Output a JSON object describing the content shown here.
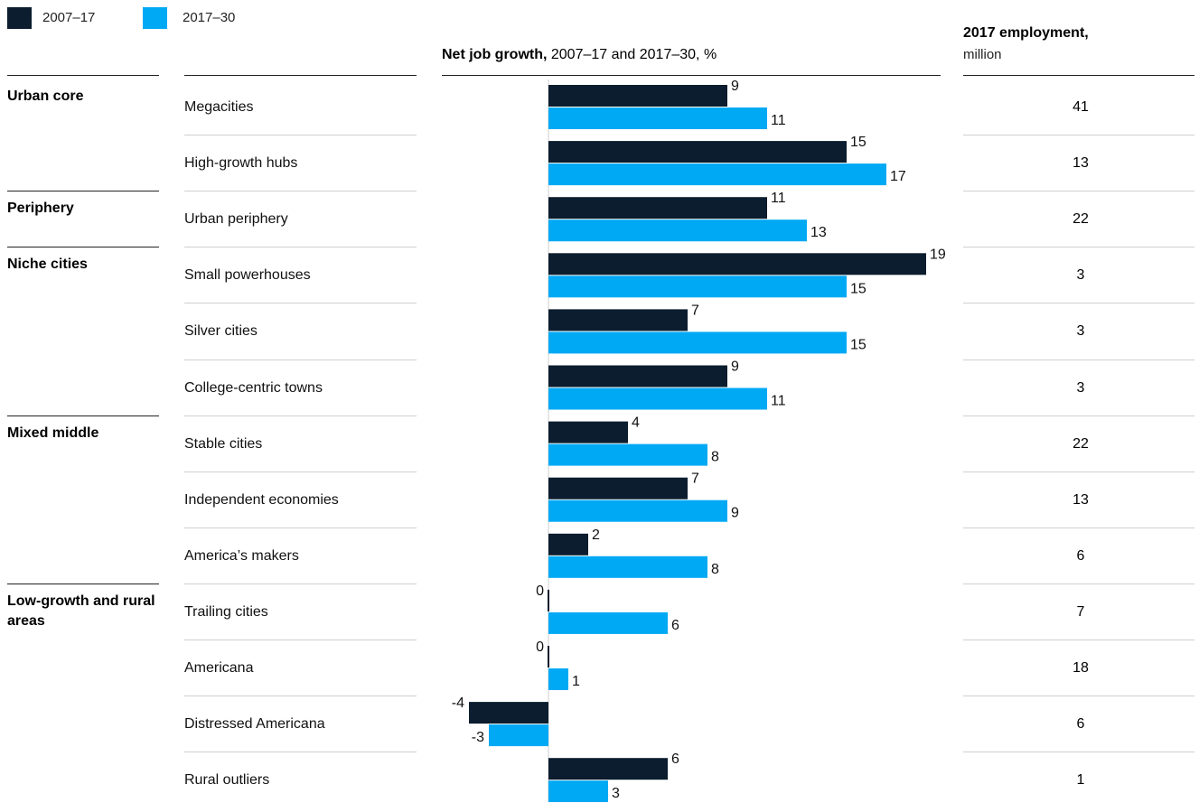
{
  "legend": [
    {
      "label": "2007–17",
      "color": "#0b1d2e"
    },
    {
      "label": "2017–30",
      "color": "#00a9f4"
    }
  ],
  "chart_header": {
    "bold": "Net job growth,",
    "rest": " 2007–17 and 2017–30, %"
  },
  "employment_header": {
    "bold": "2017 employment,",
    "unit": "million"
  },
  "groups": [
    {
      "label": "Urban core",
      "start_row": 0
    },
    {
      "label": "Periphery",
      "start_row": 2
    },
    {
      "label": "Niche cities",
      "start_row": 3
    },
    {
      "label": "Mixed middle",
      "start_row": 6
    },
    {
      "label": "Low-growth and rural areas",
      "start_row": 9
    }
  ],
  "chart_data": {
    "type": "bar",
    "orientation": "horizontal",
    "categories": [
      "Megacities",
      "High-growth hubs",
      "Urban periphery",
      "Small powerhouses",
      "Silver cities",
      "College-centric towns",
      "Stable cities",
      "Independent economies",
      "America’s makers",
      "Trailing cities",
      "Americana",
      "Distressed Americana",
      "Rural outliers"
    ],
    "series": [
      {
        "name": "2007–17",
        "color": "#0b1d2e",
        "values": [
          9,
          15,
          11,
          19,
          7,
          9,
          4,
          7,
          2,
          0,
          0,
          -4,
          6
        ]
      },
      {
        "name": "2017–30",
        "color": "#00a9f4",
        "values": [
          11,
          17,
          13,
          15,
          15,
          11,
          8,
          9,
          8,
          6,
          1,
          -3,
          3
        ]
      }
    ],
    "employment_2017": [
      "41",
      "13",
      "22",
      "3",
      "3",
      "3",
      "22",
      "13",
      "6",
      "7",
      "18",
      "6",
      "1"
    ],
    "title": "Net job growth, 2007–17 and 2017–30, %",
    "xlabel": "",
    "ylabel": "",
    "xlim": [
      -6,
      20
    ]
  }
}
